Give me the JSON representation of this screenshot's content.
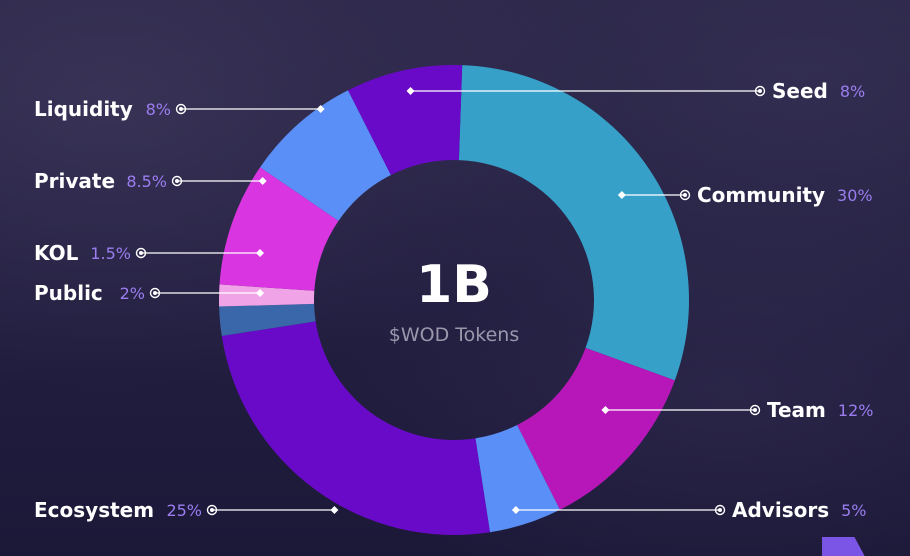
{
  "chart_data": {
    "type": "donut",
    "center": {
      "value": "1B",
      "label": "$WOD Tokens"
    },
    "slices": [
      {
        "name": "Community",
        "percent": "30%",
        "value": 30,
        "color": "#36a0c9"
      },
      {
        "name": "Team",
        "percent": "12%",
        "value": 12,
        "color": "#b717b8"
      },
      {
        "name": "Advisors",
        "percent": "5%",
        "value": 5,
        "color": "#5a8ff7"
      },
      {
        "name": "Ecosystem",
        "percent": "25%",
        "value": 25,
        "color": "#6a0ac9"
      },
      {
        "name": "Public",
        "percent": "2%",
        "value": 2,
        "color": "#3a67aa"
      },
      {
        "name": "KOL",
        "percent": "1.5%",
        "value": 1.5,
        "color": "#f0a3e6"
      },
      {
        "name": "Private",
        "percent": "8.5%",
        "value": 8.5,
        "color": "#d935e0"
      },
      {
        "name": "Liquidity",
        "percent": "8%",
        "value": 8,
        "color": "#5a8ff7"
      },
      {
        "name": "Seed",
        "percent": "8%",
        "value": 8,
        "color": "#6a0ac9"
      }
    ]
  },
  "colors": {
    "label_text": "#ffffff",
    "percent_text": "#9b7df0",
    "connector": "#ffffff"
  }
}
